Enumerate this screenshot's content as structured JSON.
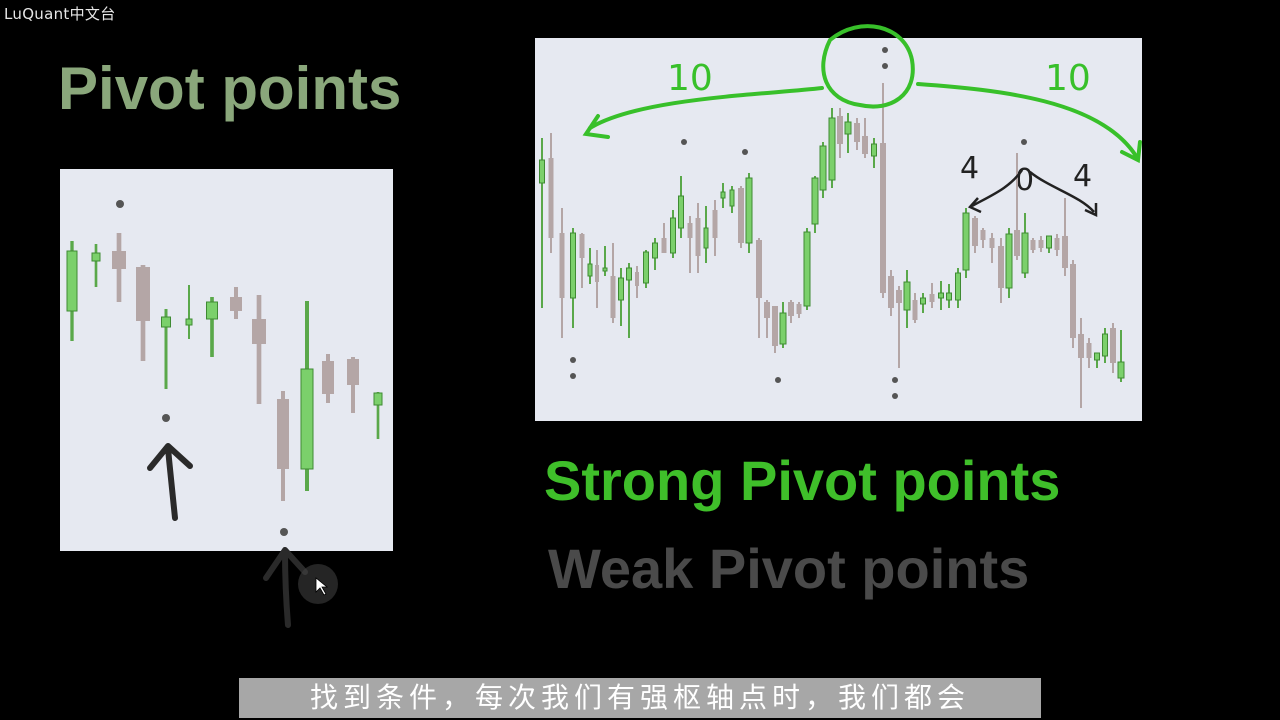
{
  "watermark": "LuQuant中文台",
  "title": "Pivot points",
  "strong_label": "Strong Pivot points",
  "weak_label": "Weak Pivot points",
  "subtitle": "找到条件，每次我们有强枢轴点时，我们都会",
  "annotations": {
    "left_count": "10",
    "right_count": "10",
    "small_left": "4",
    "small_mid": "0",
    "small_right": "4"
  },
  "colors": {
    "bull": "#7bd06b",
    "bear": "#b4a6a6",
    "pivot_dot": "#555555",
    "green_ink": "#38c02a",
    "dark_ink": "#222222"
  }
}
